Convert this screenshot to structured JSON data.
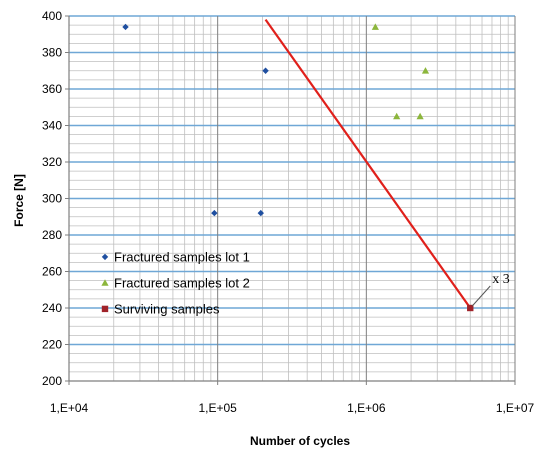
{
  "chart_data": {
    "type": "scatter",
    "xlabel": "Number of cycles",
    "ylabel": "Force [N]",
    "xscale": "log",
    "xlim": [
      10000,
      10000000
    ],
    "ylim": [
      200,
      400
    ],
    "grid": true,
    "x_tick_labels": [
      "1,E+04",
      "1,E+05",
      "1,E+06",
      "1,E+07"
    ],
    "x_tick_values": [
      10000,
      100000,
      1000000,
      10000000
    ],
    "y_ticks": [
      200,
      220,
      240,
      260,
      280,
      300,
      320,
      340,
      360,
      380,
      400
    ],
    "legend_position": "bottom-left",
    "series": [
      {
        "name": "Fractured samples lot 1",
        "marker": "diamond",
        "color": "#1f4fa0",
        "points": [
          {
            "x": 24000,
            "y": 394
          },
          {
            "x": 210000,
            "y": 370
          },
          {
            "x": 95000,
            "y": 292
          },
          {
            "x": 195000,
            "y": 292
          }
        ]
      },
      {
        "name": "Fractured samples lot 2",
        "marker": "triangle",
        "color": "#8cb63c",
        "points": [
          {
            "x": 1150000,
            "y": 394
          },
          {
            "x": 2500000,
            "y": 370
          },
          {
            "x": 1600000,
            "y": 345
          },
          {
            "x": 2300000,
            "y": 345
          }
        ]
      },
      {
        "name": "Surviving samples",
        "marker": "square",
        "color": "#a0232a",
        "points": [
          {
            "x": 5000000,
            "y": 240
          }
        ]
      }
    ],
    "trend_line": {
      "color": "#e0201b",
      "from": {
        "x": 210000,
        "y": 398
      },
      "to": {
        "x": 5000000,
        "y": 240
      }
    },
    "annotations": [
      {
        "text": "x 3",
        "target": {
          "x": 5000000,
          "y": 240
        }
      }
    ],
    "colors": {
      "major_grid": "#6fa7d6",
      "minor_grid": "#bfbfbf",
      "axis": "#7f7f7f"
    }
  }
}
